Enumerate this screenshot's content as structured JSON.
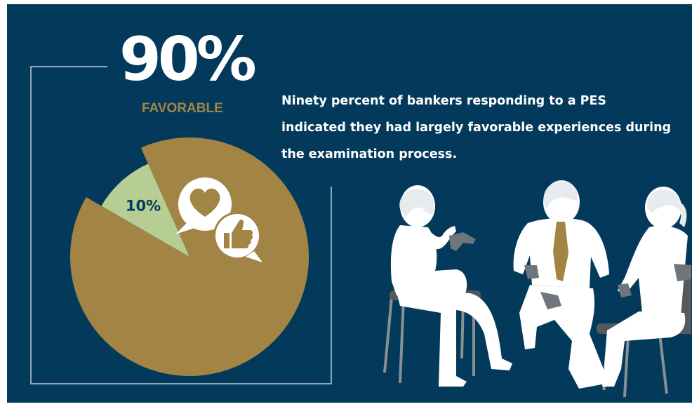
{
  "headline": {
    "percent": "90%",
    "label": "FAVORABLE"
  },
  "description": "Ninety percent of bankers responding to a PES indicated they had largely favorable experiences during the examination process.",
  "chart_data": {
    "type": "pie",
    "slices": [
      {
        "label": "",
        "value": 90,
        "color": "#a28545"
      },
      {
        "label": "10%",
        "value": 10,
        "color": "#b6cd93"
      }
    ]
  },
  "colors": {
    "background": "#033a5c",
    "accent_gold": "#a28545",
    "accent_green": "#b6cd93",
    "silhouette": "#ffffff",
    "chair": "#8a8f93"
  },
  "icons": [
    "heart-speech-bubble-icon",
    "thumbs-up-speech-bubble-icon"
  ]
}
